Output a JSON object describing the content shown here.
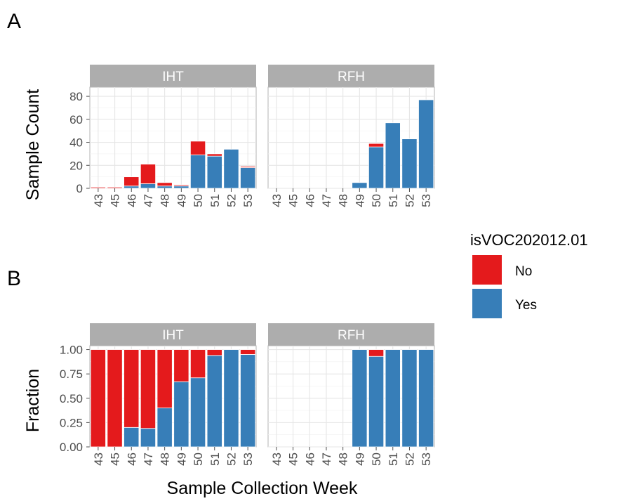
{
  "panel_tags": {
    "a": "A",
    "b": "B"
  },
  "legend": {
    "title": "isVOC202012.01",
    "items": [
      {
        "label": "No",
        "color": "#e41a1c"
      },
      {
        "label": "Yes",
        "color": "#377eb8"
      }
    ]
  },
  "chart_data": [
    {
      "type": "bar",
      "stacked": true,
      "facets": [
        "IHT",
        "RFH"
      ],
      "categories": [
        "43",
        "45",
        "46",
        "47",
        "48",
        "49",
        "50",
        "51",
        "52",
        "53"
      ],
      "xlabel": "",
      "ylabel": "Sample Count",
      "ylim": [
        0,
        88
      ],
      "yticks": [
        0,
        20,
        40,
        60,
        80
      ],
      "grid": true,
      "series": [
        {
          "name": "Yes",
          "color": "#377eb8",
          "values": {
            "IHT": [
              0,
              0,
              2,
              4,
              2,
              2,
              29,
              28,
              34,
              18
            ],
            "RFH": [
              0,
              0,
              0,
              0,
              0,
              5,
              36,
              57,
              43,
              77
            ]
          }
        },
        {
          "name": "No",
          "color": "#e41a1c",
          "values": {
            "IHT": [
              1,
              1,
              8,
              17,
              3,
              1,
              12,
              2,
              0,
              1
            ],
            "RFH": [
              0,
              0,
              0,
              0,
              0,
              0,
              3,
              0,
              0,
              0
            ]
          }
        }
      ]
    },
    {
      "type": "bar",
      "stacked": true,
      "facets": [
        "IHT",
        "RFH"
      ],
      "categories": [
        "43",
        "45",
        "46",
        "47",
        "48",
        "49",
        "50",
        "51",
        "52",
        "53"
      ],
      "xlabel": "Sample Collection Week",
      "ylabel": "Fraction",
      "ylim": [
        0,
        1.04
      ],
      "yticks": [
        "0.00",
        "0.25",
        "0.50",
        "0.75",
        "1.00"
      ],
      "grid": true,
      "series": [
        {
          "name": "Yes",
          "color": "#377eb8",
          "values": {
            "IHT": [
              0,
              0,
              0.2,
              0.19,
              0.4,
              0.67,
              0.71,
              0.94,
              1,
              0.95
            ],
            "RFH": [
              0,
              0,
              0,
              0,
              0,
              1,
              0.93,
              1,
              1,
              1
            ]
          }
        },
        {
          "name": "No",
          "color": "#e41a1c",
          "values": {
            "IHT": [
              1,
              1,
              0.8,
              0.81,
              0.6,
              0.33,
              0.29,
              0.06,
              0,
              0.05
            ],
            "RFH": [
              0,
              0,
              0,
              0,
              0,
              0,
              0.07,
              0,
              0,
              0
            ]
          }
        }
      ]
    }
  ]
}
